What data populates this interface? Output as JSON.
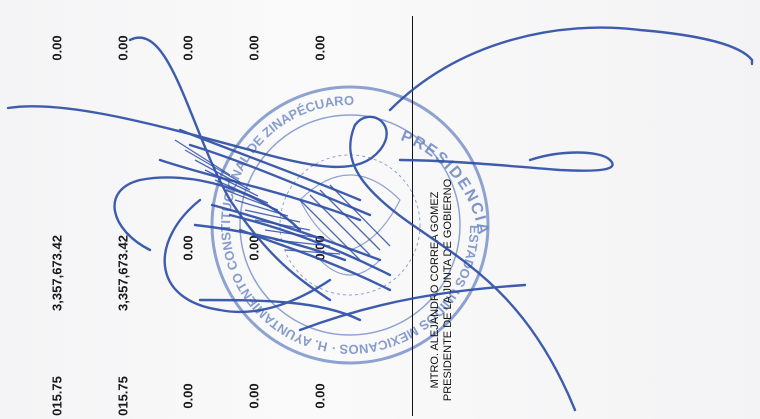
{
  "amounts": {
    "row1": [
      "0.00",
      "0.00",
      "0.00",
      "0.00",
      "0.00"
    ],
    "row2": [
      "3,357,673.42",
      "3,357,673.42",
      "0.00",
      "0.00",
      "0.00"
    ],
    "row3": [
      "015.75",
      "015.75",
      "0.00",
      "0.00",
      "0.00"
    ]
  },
  "signatory": {
    "name": "MTRO. ALEJANDRO CORREA GOMEZ",
    "title": "PRESIDENTE DE LA JUNTA DE GOBIERNO"
  },
  "seal": {
    "top_text": "PRESIDENCIA",
    "ring_text": "ESTADOS UNIDOS MEXICANOS · H. AYUNTAMIENTO CONSTITUCIONAL DE ZINAPÉCUARO",
    "ink_color": "#6b86c4"
  },
  "signature_ink": "#2f4fa8"
}
